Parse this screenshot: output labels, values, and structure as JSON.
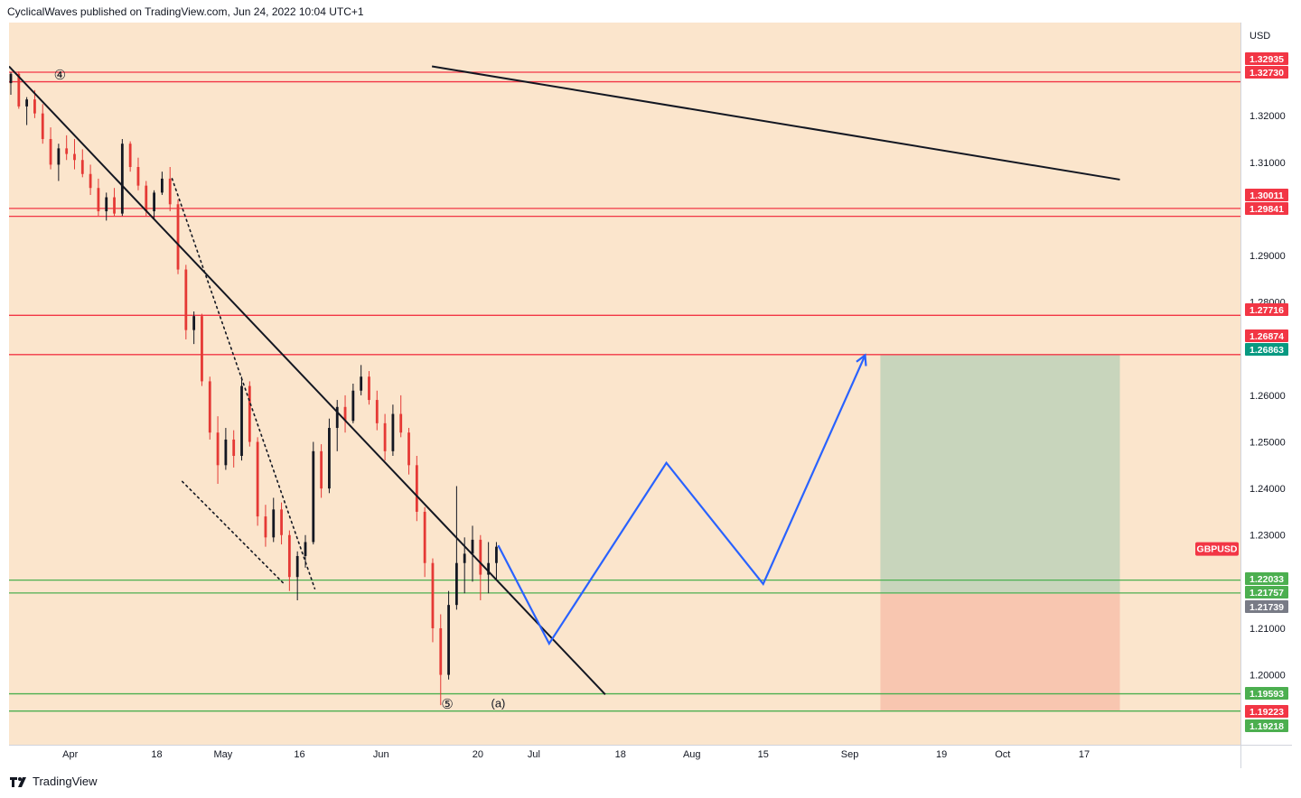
{
  "header": {
    "text": "CyclicalWaves published on TradingView.com, Jun 24, 2022 10:04 UTC+1"
  },
  "footer": {
    "brand": "TradingView"
  },
  "chart_data": {
    "type": "candlestick",
    "symbol": "GBPUSD",
    "currency": "USD",
    "ylim": [
      1.185,
      1.34
    ],
    "x_ticks": [
      "Apr",
      "18",
      "May",
      "16",
      "Jun",
      "20",
      "Jul",
      "18",
      "Aug",
      "15",
      "Sep",
      "19",
      "Oct",
      "17"
    ],
    "y_ticks": [
      "1.32000",
      "1.31000",
      "1.29000",
      "1.28000",
      "1.26000",
      "1.25000",
      "1.24000",
      "1.23000",
      "1.21000",
      "1.20000"
    ],
    "red_levels": [
      1.32935,
      1.3273,
      1.30011,
      1.29841,
      1.27716,
      1.26874
    ],
    "green_levels": [
      1.22033,
      1.21757,
      1.19593,
      1.19223
    ],
    "price_labels": [
      {
        "text": "1.32935",
        "color": "#f23645"
      },
      {
        "text": "1.32730",
        "color": "#f23645"
      },
      {
        "text": "1.30011",
        "color": "#f23645"
      },
      {
        "text": "1.29841",
        "color": "#f23645"
      },
      {
        "text": "1.27716",
        "color": "#f23645"
      },
      {
        "text": "1.26874",
        "color": "#f23645"
      },
      {
        "text": "1.26863",
        "color": "#089981"
      },
      {
        "text": "1.22033",
        "color": "#4caf50"
      },
      {
        "text": "1.21757",
        "color": "#4caf50"
      },
      {
        "text": "1.21739",
        "color": "#787b86"
      },
      {
        "text": "1.19593",
        "color": "#4caf50"
      },
      {
        "text": "1.19223",
        "color": "#f23645"
      },
      {
        "text": "1.19218",
        "color": "#4caf50"
      }
    ],
    "current": {
      "symbol": "GBPUSD",
      "price": 1.2275
    },
    "wave_labels": [
      {
        "text": "④",
        "x": "Mar 30",
        "y": 1.3286
      },
      {
        "text": "⑤",
        "x": "Jun 14",
        "y": 1.1935
      },
      {
        "text": "(a)",
        "x": "Jun 24",
        "y": 1.1937
      }
    ],
    "trendlines": [
      {
        "style": "solid",
        "points": [
          [
            "Mar 20",
            1.3306
          ],
          [
            "Jul 15",
            1.1958
          ]
        ]
      },
      {
        "style": "solid",
        "points": [
          [
            "Jun 11",
            1.3306
          ],
          [
            "Oct 24",
            1.3063
          ]
        ]
      },
      {
        "style": "dotted",
        "points": [
          [
            "Apr 21",
            1.3065
          ],
          [
            "May 19",
            1.2185
          ]
        ]
      },
      {
        "style": "dotted",
        "points": [
          [
            "Apr 23",
            1.2415
          ],
          [
            "May 13",
            1.2195
          ]
        ]
      }
    ],
    "projection": {
      "color": "#2962ff",
      "points": [
        [
          "Jun 24",
          1.2278
        ],
        [
          "Jul 4",
          1.2067
        ],
        [
          "Jul 27",
          1.2455
        ],
        [
          "Aug 15",
          1.2195
        ],
        [
          "Sep 4",
          1.2686
        ]
      ]
    },
    "position_box": {
      "from": "Sep 7",
      "to": "Oct 24",
      "entry": 1.21739,
      "target": 1.26863,
      "stop": 1.19218
    },
    "ohlc_series": [
      [
        1.327,
        1.3293,
        1.3245,
        1.329
      ],
      [
        1.329,
        1.3295,
        1.3215,
        1.322
      ],
      [
        1.322,
        1.324,
        1.318,
        1.3235
      ],
      [
        1.3235,
        1.3255,
        1.3195,
        1.3205
      ],
      [
        1.3205,
        1.3225,
        1.314,
        1.315
      ],
      [
        1.315,
        1.3175,
        1.3085,
        1.3095
      ],
      [
        1.3095,
        1.314,
        1.306,
        1.313
      ],
      [
        1.313,
        1.3158,
        1.3105,
        1.3118
      ],
      [
        1.3118,
        1.315,
        1.3085,
        1.3105
      ],
      [
        1.3105,
        1.3128,
        1.3068,
        1.3075
      ],
      [
        1.3075,
        1.3095,
        1.303,
        1.3045
      ],
      [
        1.3045,
        1.3065,
        1.2985,
        1.2995
      ],
      [
        1.2995,
        1.3035,
        1.2975,
        1.3025
      ],
      [
        1.3025,
        1.3045,
        1.2985,
        1.299
      ],
      [
        1.299,
        1.315,
        1.2985,
        1.314
      ],
      [
        1.314,
        1.3145,
        1.308,
        1.309
      ],
      [
        1.309,
        1.311,
        1.304,
        1.305
      ],
      [
        1.305,
        1.306,
        1.2985,
        1.2995
      ],
      [
        1.2995,
        1.304,
        1.298,
        1.3035
      ],
      [
        1.3035,
        1.308,
        1.303,
        1.3065
      ],
      [
        1.3065,
        1.309,
        1.2995,
        1.301
      ],
      [
        1.301,
        1.302,
        1.286,
        1.287
      ],
      [
        1.287,
        1.288,
        1.272,
        1.274
      ],
      [
        1.274,
        1.278,
        1.271,
        1.277
      ],
      [
        1.277,
        1.2775,
        1.262,
        1.263
      ],
      [
        1.263,
        1.264,
        1.2505,
        1.252
      ],
      [
        1.252,
        1.2555,
        1.241,
        1.245
      ],
      [
        1.245,
        1.253,
        1.244,
        1.2505
      ],
      [
        1.2505,
        1.2525,
        1.2445,
        1.247
      ],
      [
        1.247,
        1.264,
        1.246,
        1.262
      ],
      [
        1.262,
        1.263,
        1.249,
        1.25
      ],
      [
        1.25,
        1.251,
        1.232,
        1.234
      ],
      [
        1.234,
        1.2365,
        1.2275,
        1.2295
      ],
      [
        1.2295,
        1.238,
        1.2285,
        1.2355
      ],
      [
        1.2355,
        1.237,
        1.228,
        1.23
      ],
      [
        1.23,
        1.231,
        1.218,
        1.221
      ],
      [
        1.221,
        1.2265,
        1.216,
        1.2255
      ],
      [
        1.2255,
        1.23,
        1.223,
        1.2285
      ],
      [
        1.2285,
        1.25,
        1.228,
        1.248
      ],
      [
        1.248,
        1.2495,
        1.238,
        1.24
      ],
      [
        1.24,
        1.255,
        1.239,
        1.253
      ],
      [
        1.253,
        1.259,
        1.248,
        1.2575
      ],
      [
        1.2575,
        1.26,
        1.252,
        1.2545
      ],
      [
        1.2545,
        1.2625,
        1.254,
        1.261
      ],
      [
        1.261,
        1.2665,
        1.26,
        1.264
      ],
      [
        1.264,
        1.2652,
        1.258,
        1.259
      ],
      [
        1.259,
        1.261,
        1.2525,
        1.254
      ],
      [
        1.254,
        1.256,
        1.246,
        1.248
      ],
      [
        1.248,
        1.258,
        1.247,
        1.256
      ],
      [
        1.256,
        1.26,
        1.251,
        1.252
      ],
      [
        1.252,
        1.253,
        1.243,
        1.245
      ],
      [
        1.245,
        1.247,
        1.233,
        1.235
      ],
      [
        1.235,
        1.236,
        1.221,
        1.224
      ],
      [
        1.224,
        1.225,
        1.207,
        1.21
      ],
      [
        1.21,
        1.213,
        1.1935,
        1.2
      ],
      [
        1.2,
        1.218,
        1.199,
        1.215
      ],
      [
        1.215,
        1.2405,
        1.214,
        1.224
      ],
      [
        1.224,
        1.2295,
        1.2175,
        1.226
      ],
      [
        1.226,
        1.232,
        1.22,
        1.229
      ],
      [
        1.229,
        1.23,
        1.216,
        1.2215
      ],
      [
        1.2215,
        1.2285,
        1.2175,
        1.224
      ],
      [
        1.224,
        1.2285,
        1.2205,
        1.2275
      ]
    ]
  }
}
